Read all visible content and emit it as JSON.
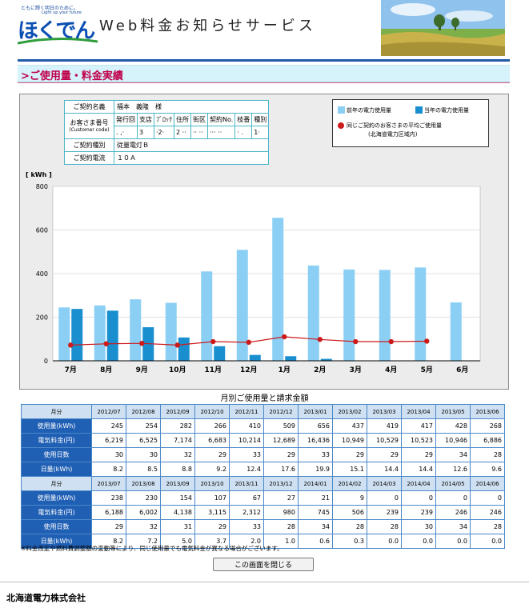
{
  "header": {
    "tagline": "ともに輝く明日のために。",
    "tagline_en": "Light up your future",
    "logo_text": "ほくでん",
    "service_title": "Web料金お知らせサービス"
  },
  "section_title": ">ご使用量・料金実績",
  "contract": {
    "name_label": "ご契約名義",
    "name_value": "福本　義隆　様",
    "customer_label": "お客さま番号",
    "customer_label_en": "(Customer code)",
    "sub_headers": [
      "発行回",
      "支店",
      "ﾌﾞﾛｯｸ",
      "住所",
      "街区",
      "契約No.",
      "枝番",
      "種別"
    ],
    "sub_values": [
      ". ,·",
      "3",
      "·2·",
      "2 ··",
      "·· ··",
      "··· ··",
      "· .",
      "1·"
    ],
    "type_label": "ご契約種別",
    "type_value": "従量電灯Ｂ",
    "current_label": "ご契約電流",
    "current_value": "１０Ａ"
  },
  "legend": {
    "prev_year": "前年の電力使用量",
    "this_year": "当年の電力使用量",
    "average": "同じご契約のお客さまの平均ご使用量",
    "average_note": "(北海道電力区域内)"
  },
  "colors": {
    "prev_bar": "#8ccff5",
    "this_bar": "#1a8fd0",
    "avg_line": "#cc1a1a",
    "header_blue": "#1f5fb4"
  },
  "chart_data": {
    "type": "bar",
    "ylabel": "[ kWh ]",
    "ylim": [
      0,
      800
    ],
    "yticks": [
      0,
      200,
      400,
      600,
      800
    ],
    "categories": [
      "7月",
      "8月",
      "9月",
      "10月",
      "11月",
      "12月",
      "1月",
      "2月",
      "3月",
      "4月",
      "5月",
      "6月"
    ],
    "series": [
      {
        "name": "前年の電力使用量",
        "type": "bar",
        "values": [
          245,
          254,
          282,
          266,
          410,
          509,
          656,
          437,
          419,
          417,
          428,
          268
        ]
      },
      {
        "name": "当年の電力使用量",
        "type": "bar",
        "values": [
          238,
          230,
          154,
          107,
          67,
          27,
          21,
          9,
          0,
          0,
          0,
          0
        ]
      },
      {
        "name": "同じご契約のお客さまの平均ご使用量",
        "type": "line",
        "values": [
          72,
          78,
          80,
          72,
          88,
          85,
          110,
          98,
          88,
          88,
          90,
          null
        ]
      }
    ],
    "grid": true,
    "legend": "top-right"
  },
  "table": {
    "title": "月別ご使用量と請求金額",
    "month_label": "月分",
    "row_labels": [
      "使用量(kWh)",
      "電気料金(円)",
      "使用日数",
      "日量(kWh)"
    ],
    "prev": {
      "months": [
        "2012/07",
        "2012/08",
        "2012/09",
        "2012/10",
        "2012/11",
        "2012/12",
        "2013/01",
        "2013/02",
        "2013/03",
        "2013/04",
        "2013/05",
        "2013/06"
      ],
      "usage": [
        "245",
        "254",
        "282",
        "266",
        "410",
        "509",
        "656",
        "437",
        "419",
        "417",
        "428",
        "268"
      ],
      "charge": [
        "6,219",
        "6,525",
        "7,174",
        "6,683",
        "10,214",
        "12,689",
        "16,436",
        "10,949",
        "10,529",
        "10,523",
        "10,946",
        "6,886"
      ],
      "days": [
        "30",
        "30",
        "32",
        "29",
        "33",
        "29",
        "33",
        "29",
        "29",
        "29",
        "34",
        "28"
      ],
      "daily": [
        "8.2",
        "8.5",
        "8.8",
        "9.2",
        "12.4",
        "17.6",
        "19.9",
        "15.1",
        "14.4",
        "14.4",
        "12.6",
        "9.6"
      ]
    },
    "curr": {
      "months": [
        "2013/07",
        "2013/08",
        "2013/09",
        "2013/10",
        "2013/11",
        "2013/12",
        "2014/01",
        "2014/02",
        "2014/03",
        "2014/04",
        "2014/05",
        "2014/06"
      ],
      "usage": [
        "238",
        "230",
        "154",
        "107",
        "67",
        "27",
        "21",
        "9",
        "0",
        "0",
        "0",
        "0"
      ],
      "charge": [
        "6,188",
        "6,002",
        "4,138",
        "3,115",
        "2,312",
        "980",
        "745",
        "506",
        "239",
        "239",
        "246",
        "246"
      ],
      "days": [
        "29",
        "32",
        "31",
        "29",
        "33",
        "28",
        "34",
        "28",
        "28",
        "30",
        "34",
        "28"
      ],
      "daily": [
        "8.2",
        "7.2",
        "5.0",
        "3.7",
        "2.0",
        "1.0",
        "0.6",
        "0.3",
        "0.0",
        "0.0",
        "0.0",
        "0.0"
      ]
    }
  },
  "note": "※料金改定や燃料費調整額の変動等により、同じ使用量でも電気料金が異なる場合がございます。",
  "close_button": "この画面を閉じる",
  "footer": {
    "company": "北海道電力株式会社"
  }
}
